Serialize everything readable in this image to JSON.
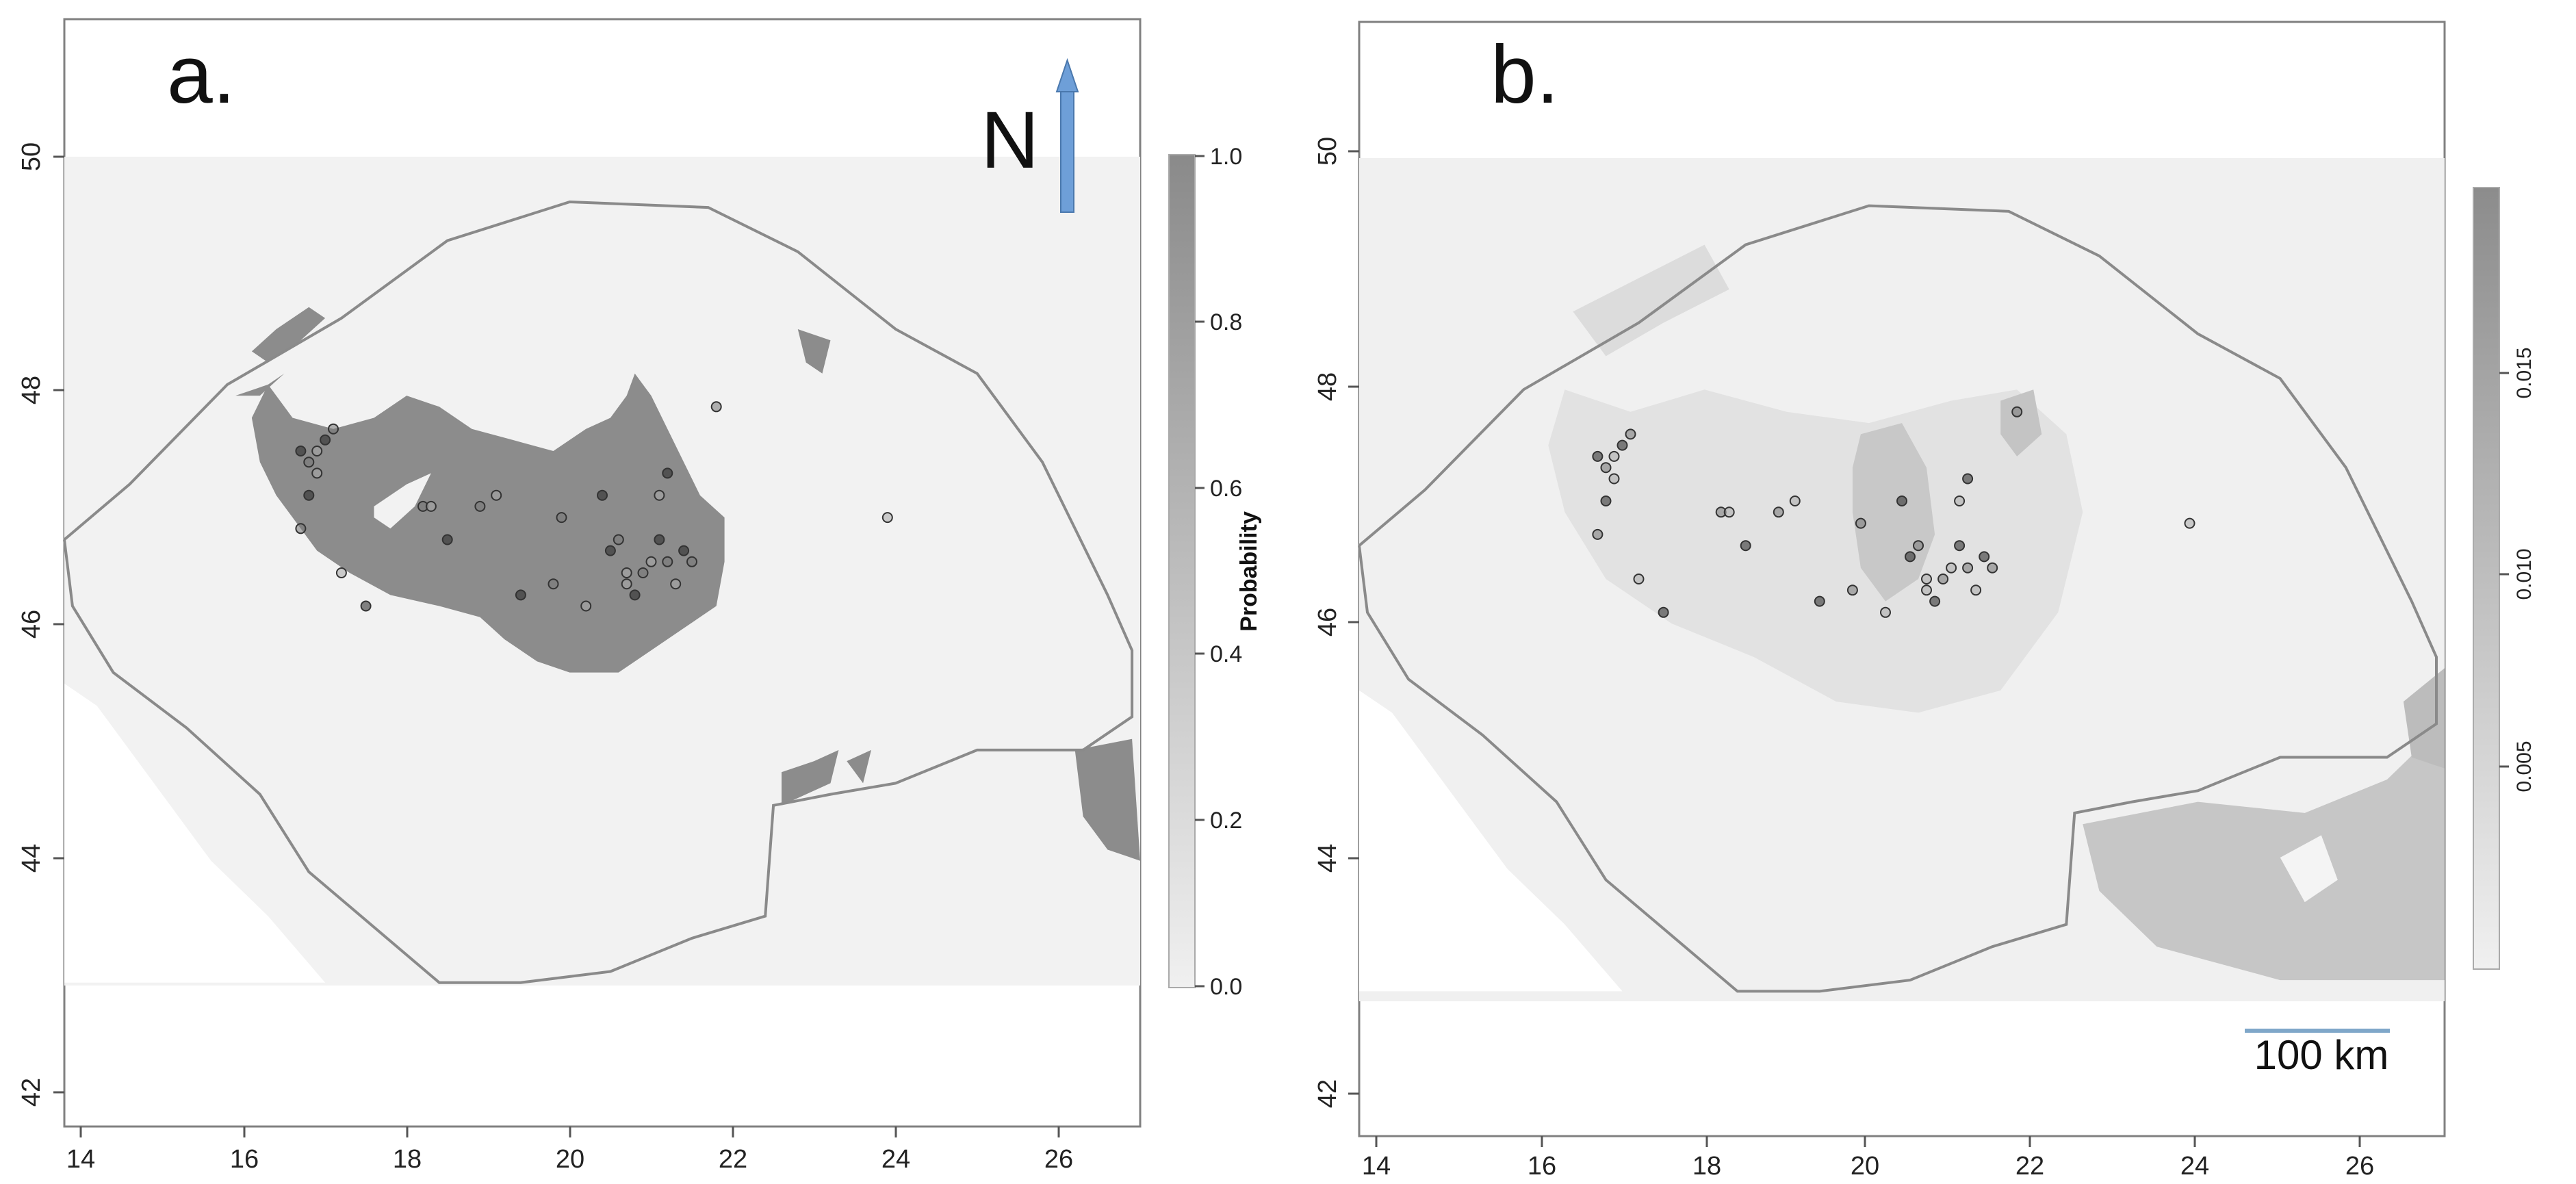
{
  "panels": [
    {
      "label": "a.",
      "xticks": [
        "14",
        "16",
        "18",
        "20",
        "22",
        "24",
        "26"
      ],
      "yticks": [
        "42",
        "44",
        "46",
        "48",
        "50"
      ],
      "colorbar": {
        "title": "Probability",
        "ticks": [
          "0.0",
          "0.2",
          "0.4",
          "0.6",
          "0.8",
          "1.0"
        ]
      },
      "north_label": "N"
    },
    {
      "label": "b.",
      "xticks": [
        "14",
        "16",
        "18",
        "20",
        "22",
        "24",
        "26"
      ],
      "yticks": [
        "42",
        "44",
        "46",
        "48",
        "50"
      ],
      "colorbar": {
        "title": "",
        "ticks": [
          "0.005",
          "0.010",
          "0.015"
        ]
      },
      "scale_bar_label": "100 km"
    }
  ],
  "colors": {
    "raster_background": "#f2f2f2",
    "high_probability": "#8c8c8c",
    "boundary": "#8a8a8a",
    "north_arrow": "#6e9fd8",
    "scale_bar": "#7fa7c9"
  },
  "icons": {
    "north_arrow": "arrow-up-icon"
  },
  "chart_data": [
    {
      "type": "map",
      "panel": "a",
      "xlim": [
        13.8,
        27.0
      ],
      "ylim": [
        41.6,
        51.6
      ],
      "raster_extent": {
        "lon": [
          13.8,
          27.0
        ],
        "lat": [
          42.9,
          49.95
        ]
      },
      "colorbar_range": [
        0.0,
        1.0
      ],
      "occurrence_points": [
        [
          16.7,
          47.7
        ],
        [
          16.8,
          47.6
        ],
        [
          16.9,
          47.7
        ],
        [
          17.0,
          47.8
        ],
        [
          17.1,
          47.9
        ],
        [
          16.9,
          47.5
        ],
        [
          16.8,
          47.3
        ],
        [
          16.7,
          47.0
        ],
        [
          17.2,
          46.6
        ],
        [
          17.5,
          46.3
        ],
        [
          18.2,
          47.2
        ],
        [
          18.3,
          47.2
        ],
        [
          18.5,
          46.9
        ],
        [
          18.9,
          47.2
        ],
        [
          19.1,
          47.3
        ],
        [
          19.4,
          46.4
        ],
        [
          19.8,
          46.5
        ],
        [
          20.2,
          46.3
        ],
        [
          20.5,
          46.8
        ],
        [
          20.6,
          46.9
        ],
        [
          20.7,
          46.6
        ],
        [
          20.8,
          46.4
        ],
        [
          20.9,
          46.6
        ],
        [
          21.0,
          46.7
        ],
        [
          21.1,
          46.9
        ],
        [
          21.2,
          46.7
        ],
        [
          21.3,
          46.5
        ],
        [
          21.4,
          46.8
        ],
        [
          21.5,
          46.7
        ],
        [
          21.1,
          47.3
        ],
        [
          21.2,
          47.5
        ],
        [
          21.8,
          48.1
        ],
        [
          23.9,
          47.1
        ],
        [
          20.4,
          47.3
        ],
        [
          19.9,
          47.1
        ],
        [
          20.7,
          46.5
        ]
      ]
    },
    {
      "type": "map",
      "panel": "b",
      "xlim": [
        13.8,
        27.0
      ],
      "ylim": [
        41.6,
        51.6
      ],
      "raster_extent": {
        "lon": [
          13.8,
          27.0
        ],
        "lat": [
          42.9,
          49.95
        ]
      },
      "colorbar_range": [
        0.0,
        0.019
      ],
      "occurrence_points": [
        [
          16.7,
          47.7
        ],
        [
          16.8,
          47.6
        ],
        [
          16.9,
          47.7
        ],
        [
          17.0,
          47.8
        ],
        [
          17.1,
          47.9
        ],
        [
          16.9,
          47.5
        ],
        [
          16.8,
          47.3
        ],
        [
          16.7,
          47.0
        ],
        [
          17.2,
          46.6
        ],
        [
          17.5,
          46.3
        ],
        [
          18.2,
          47.2
        ],
        [
          18.3,
          47.2
        ],
        [
          18.5,
          46.9
        ],
        [
          18.9,
          47.2
        ],
        [
          19.1,
          47.3
        ],
        [
          19.4,
          46.4
        ],
        [
          19.8,
          46.5
        ],
        [
          20.2,
          46.3
        ],
        [
          20.5,
          46.8
        ],
        [
          20.6,
          46.9
        ],
        [
          20.7,
          46.6
        ],
        [
          20.8,
          46.4
        ],
        [
          20.9,
          46.6
        ],
        [
          21.0,
          46.7
        ],
        [
          21.1,
          46.9
        ],
        [
          21.2,
          46.7
        ],
        [
          21.3,
          46.5
        ],
        [
          21.4,
          46.8
        ],
        [
          21.5,
          46.7
        ],
        [
          21.1,
          47.3
        ],
        [
          21.2,
          47.5
        ],
        [
          21.8,
          48.1
        ],
        [
          23.9,
          47.1
        ],
        [
          20.4,
          47.3
        ],
        [
          19.9,
          47.1
        ],
        [
          20.7,
          46.5
        ]
      ]
    }
  ],
  "boundary_polygon": [
    [
      13.8,
      46.9
    ],
    [
      14.6,
      47.4
    ],
    [
      15.8,
      48.3
    ],
    [
      17.2,
      48.9
    ],
    [
      18.5,
      49.6
    ],
    [
      20.0,
      49.95
    ],
    [
      21.7,
      49.9
    ],
    [
      22.8,
      49.5
    ],
    [
      24.0,
      48.8
    ],
    [
      25.0,
      48.4
    ],
    [
      25.8,
      47.6
    ],
    [
      26.6,
      46.4
    ],
    [
      26.9,
      45.9
    ],
    [
      26.9,
      45.3
    ],
    [
      26.3,
      45.0
    ],
    [
      25.0,
      45.0
    ],
    [
      24.0,
      44.7
    ],
    [
      23.2,
      44.6
    ],
    [
      22.5,
      44.5
    ],
    [
      22.4,
      43.5
    ],
    [
      21.5,
      43.3
    ],
    [
      20.5,
      43.0
    ],
    [
      19.4,
      42.9
    ],
    [
      18.4,
      42.9
    ],
    [
      16.8,
      43.9
    ],
    [
      16.2,
      44.6
    ],
    [
      15.3,
      45.2
    ],
    [
      14.4,
      45.7
    ],
    [
      13.9,
      46.3
    ],
    [
      13.8,
      46.9
    ]
  ]
}
